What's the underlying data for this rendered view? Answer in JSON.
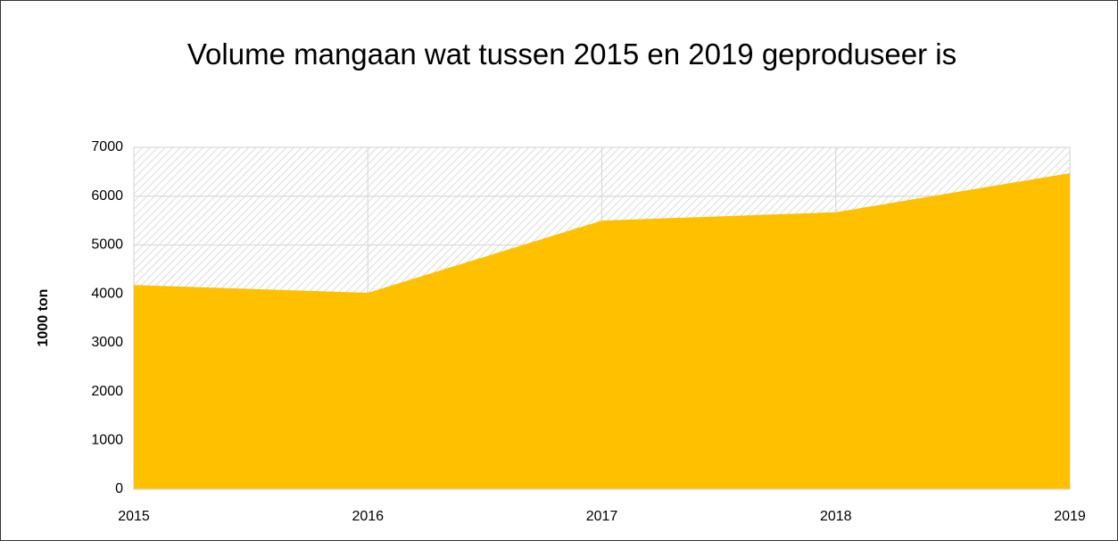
{
  "chart_data": {
    "type": "area",
    "title": "Volume mangaan wat tussen 2015 en 2019  geproduseer is",
    "ylabel": "1000 ton",
    "categories": [
      "2015",
      "2016",
      "2017",
      "2018",
      "2019"
    ],
    "values": [
      4180,
      4020,
      5500,
      5670,
      6470
    ],
    "color": "#ffc000",
    "ylim": [
      0,
      7000
    ],
    "yticks": [
      0,
      1000,
      2000,
      3000,
      4000,
      5000,
      6000,
      7000
    ],
    "grid": true
  }
}
